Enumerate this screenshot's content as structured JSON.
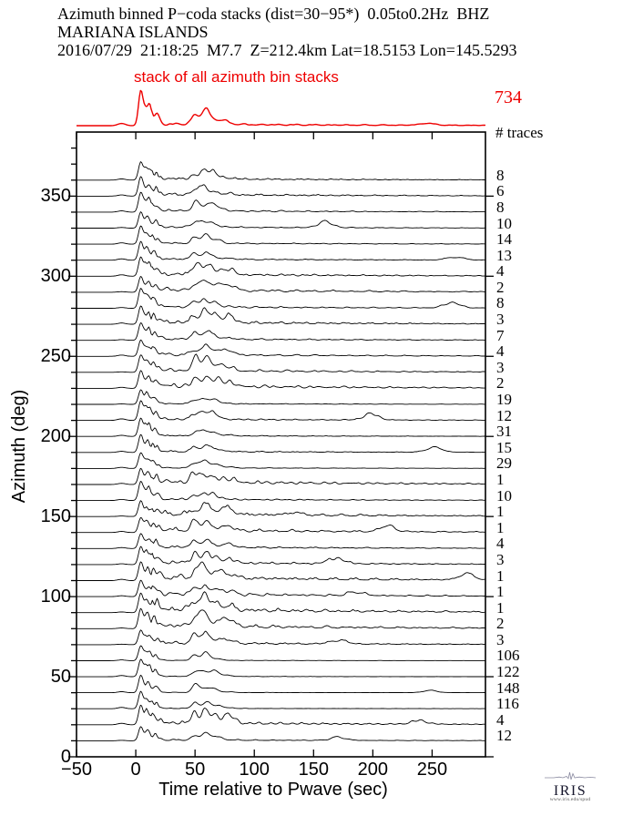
{
  "title": {
    "line1": "Azimuth binned P−coda stacks (dist=30−95*)  0.05to0.2Hz  BHZ",
    "line2": "MARIANA ISLANDS",
    "line3": "2016/07/29  21:18:25  M7.7  Z=212.4km Lat=18.5153 Lon=145.5293"
  },
  "overview": {
    "label": "stack of all azimuth bin stacks",
    "total": "734",
    "traces_heading": "# traces",
    "color": "#ee0000"
  },
  "chart_data": {
    "type": "line",
    "title": "Azimuth binned P−coda stacks (dist=30−95*) 0.05to0.2Hz BHZ",
    "event": "MARIANA ISLANDS 2016/07/29 21:18:25 M7.7 Z=212.4km Lat=18.5153 Lon=145.5293",
    "xlabel": "Time relative to Pwave (sec)",
    "ylabel": "Azimuth (deg)",
    "xlim": [
      -50,
      295
    ],
    "ylim": [
      0,
      390
    ],
    "x_ticks": [
      -50,
      0,
      50,
      100,
      150,
      200,
      250
    ],
    "y_ticks": [
      0,
      50,
      100,
      150,
      200,
      250,
      300,
      350
    ],
    "y_minor_tick_step": 10,
    "grid": false,
    "n_bins": 36,
    "bin_width_deg": 10,
    "overview_stack": {
      "label": "stack of all azimuth bin stacks",
      "n_traces": 734
    },
    "bins": [
      {
        "azimuth": 360,
        "n_traces": 8
      },
      {
        "azimuth": 350,
        "n_traces": 6
      },
      {
        "azimuth": 340,
        "n_traces": 8
      },
      {
        "azimuth": 330,
        "n_traces": 10
      },
      {
        "azimuth": 320,
        "n_traces": 14
      },
      {
        "azimuth": 310,
        "n_traces": 13
      },
      {
        "azimuth": 300,
        "n_traces": 4
      },
      {
        "azimuth": 290,
        "n_traces": 2
      },
      {
        "azimuth": 280,
        "n_traces": 8
      },
      {
        "azimuth": 270,
        "n_traces": 3
      },
      {
        "azimuth": 260,
        "n_traces": 7
      },
      {
        "azimuth": 250,
        "n_traces": 4
      },
      {
        "azimuth": 240,
        "n_traces": 3
      },
      {
        "azimuth": 230,
        "n_traces": 2
      },
      {
        "azimuth": 220,
        "n_traces": 19
      },
      {
        "azimuth": 210,
        "n_traces": 12
      },
      {
        "azimuth": 200,
        "n_traces": 31
      },
      {
        "azimuth": 190,
        "n_traces": 15
      },
      {
        "azimuth": 180,
        "n_traces": 29
      },
      {
        "azimuth": 170,
        "n_traces": 1
      },
      {
        "azimuth": 160,
        "n_traces": 10
      },
      {
        "azimuth": 150,
        "n_traces": 1
      },
      {
        "azimuth": 140,
        "n_traces": 1
      },
      {
        "azimuth": 130,
        "n_traces": 4
      },
      {
        "azimuth": 120,
        "n_traces": 3
      },
      {
        "azimuth": 110,
        "n_traces": 1
      },
      {
        "azimuth": 100,
        "n_traces": 1
      },
      {
        "azimuth": 90,
        "n_traces": 1
      },
      {
        "azimuth": 80,
        "n_traces": 2
      },
      {
        "azimuth": 70,
        "n_traces": 3
      },
      {
        "azimuth": 60,
        "n_traces": 106
      },
      {
        "azimuth": 50,
        "n_traces": 122
      },
      {
        "azimuth": 40,
        "n_traces": 148
      },
      {
        "azimuth": 30,
        "n_traces": 116
      },
      {
        "azimuth": 20,
        "n_traces": 4
      },
      {
        "azimuth": 10,
        "n_traces": 12
      }
    ],
    "waveform_description": "Envelope stacks per 10-degree azimuth bin: flat pre-signal, sharp P-coda onset peaks at t=0-15 s, secondary burst near t=50-65 s, low-amplitude coda decaying out to 295 s; coda noise level is larger for bins containing few traces."
  },
  "logo": {
    "name": "IRIS",
    "url_text": "www.iris.edu/spud"
  }
}
